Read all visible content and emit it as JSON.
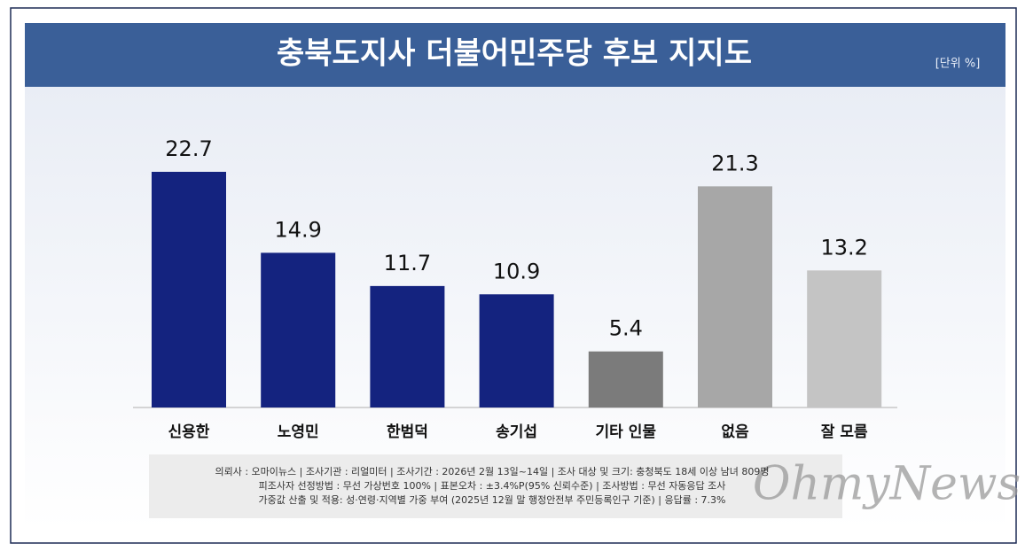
{
  "chart_data": {
    "type": "bar",
    "title": "충북도지사 더불어민주당 후보 지지도",
    "unit": "[단위 %]",
    "categories": [
      "신용한",
      "노영민",
      "한범덕",
      "송기섭",
      "기타 인물",
      "없음",
      "잘 모름"
    ],
    "values": [
      22.7,
      14.9,
      11.7,
      10.9,
      5.4,
      21.3,
      13.2
    ],
    "colors": [
      "#14237f",
      "#14237f",
      "#14237f",
      "#14237f",
      "#7b7b7b",
      "#a7a7a7",
      "#c4c4c4"
    ],
    "notes": [
      "의뢰사 : 오마이뉴스 | 조사기관 : 리얼미터 | 조사기간 : 2026년 2월 13일~14일 | 조사 대상 및 크기: 충청북도 18세 이상 남녀 809명",
      "피조사자 선정방법 : 무선 가상번호 100% | 표본오차 : ±3.4%P(95% 신뢰수준) | 조사방법 : 무선 자동응답 조사",
      "가중값 산출 및 적용: 성·연령·지역별 가중 부여 (2025년 12월 말 행정안전부 주민등록인구 기준) | 응답률 : 7.3%"
    ],
    "watermark": "OhmyNews"
  }
}
